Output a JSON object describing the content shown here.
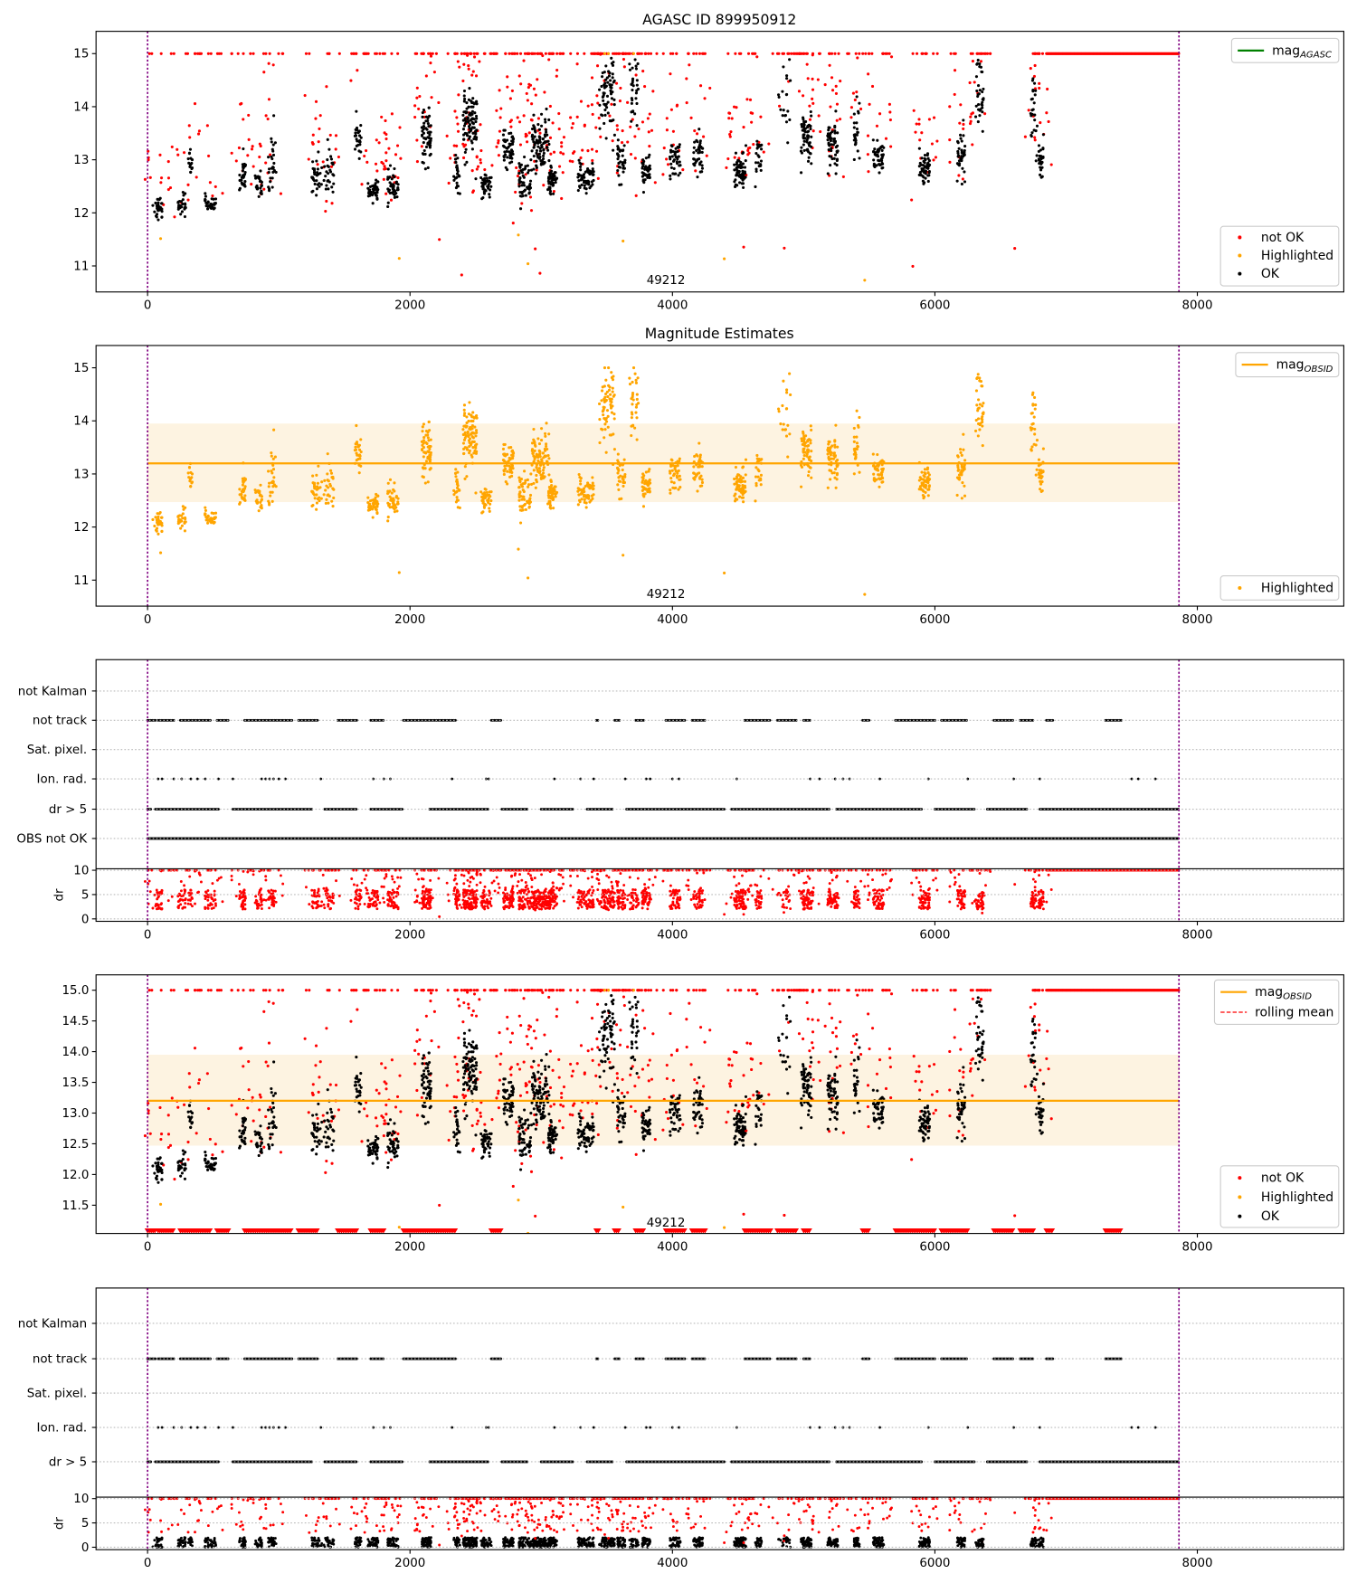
{
  "chart_data": {
    "type": "scatter",
    "title": "AGASC ID 899950912",
    "subtitle": "Magnitude Estimates",
    "obsid_label": "49212",
    "xlim": [
      -390,
      9120
    ],
    "x_ticks": [
      "0",
      "2000",
      "4000",
      "6000",
      "8000"
    ],
    "x_tick_values": [
      0,
      2000,
      4000,
      6000,
      8000
    ],
    "time_range": [
      0,
      7860
    ],
    "mag_mean": 13.2,
    "mag_band": [
      12.47,
      13.95
    ],
    "panels": {
      "mag_agasc": {
        "ylim": [
          10.51,
          15.42
        ],
        "y_ticks": [
          "11",
          "12",
          "13",
          "14",
          "15"
        ],
        "y_tick_values": [
          11,
          12,
          13,
          14,
          15
        ]
      },
      "mag_obsid": {
        "ylim": [
          10.51,
          15.42
        ],
        "y_ticks": [
          "11",
          "12",
          "13",
          "14",
          "15"
        ],
        "y_tick_values": [
          11,
          12,
          13,
          14,
          15
        ]
      },
      "mag_rolling": {
        "ylim": [
          11.04,
          15.25
        ],
        "y_ticks": [
          "11.5",
          "12.0",
          "12.5",
          "13.0",
          "13.5",
          "14.0",
          "14.5",
          "15.0"
        ],
        "y_tick_values": [
          11.5,
          12,
          12.5,
          13,
          13.5,
          14,
          14.5,
          15
        ]
      },
      "dr": {
        "ylabel": "dr",
        "ylim": [
          -0.5,
          10.3
        ],
        "y_ticks": [
          "0",
          "5",
          "10"
        ],
        "y_tick_values": [
          0,
          5,
          10
        ]
      }
    },
    "flag_labels_a": [
      "not Kalman",
      "not track",
      "Sat. pixel.",
      "Ion. rad.",
      "dr > 5",
      "OBS not OK"
    ],
    "flag_labels_b": [
      "not Kalman",
      "not track",
      "Sat. pixel.",
      "Ion. rad.",
      "dr > 5"
    ],
    "legend": {
      "mag_agasc": {
        "base": "mag",
        "sub": "AGASC"
      },
      "mag_obsid": {
        "base": "mag",
        "sub": "OBSID"
      },
      "rolling_mean": "rolling mean",
      "not_ok": "not OK",
      "highlighted": "Highlighted",
      "ok": "OK"
    },
    "colors": {
      "ok": "#000000",
      "not_ok": "#ff0000",
      "highlighted": "#ffa500",
      "agasc_line": "#008000",
      "obsid_line": "#ffa500",
      "band": "#fdf3e1",
      "time_bounds": "#800080"
    },
    "clusters": [
      [
        40,
        110,
        12.1,
        0.12,
        30
      ],
      [
        230,
        290,
        12.1,
        0.12,
        25
      ],
      [
        310,
        350,
        13.0,
        0.15,
        15
      ],
      [
        430,
        520,
        12.2,
        0.12,
        30
      ],
      [
        700,
        750,
        12.7,
        0.2,
        30
      ],
      [
        820,
        880,
        12.5,
        0.15,
        25
      ],
      [
        920,
        980,
        12.9,
        0.35,
        30
      ],
      [
        1250,
        1420,
        12.7,
        0.2,
        60
      ],
      [
        1580,
        1630,
        13.4,
        0.2,
        25
      ],
      [
        1680,
        1760,
        12.4,
        0.12,
        40
      ],
      [
        1830,
        1910,
        12.5,
        0.15,
        40
      ],
      [
        2090,
        2160,
        13.4,
        0.25,
        60
      ],
      [
        2320,
        2380,
        12.7,
        0.2,
        25
      ],
      [
        2400,
        2510,
        13.7,
        0.35,
        90
      ],
      [
        2540,
        2620,
        12.5,
        0.12,
        40
      ],
      [
        2710,
        2790,
        13.2,
        0.2,
        50
      ],
      [
        2830,
        2920,
        12.6,
        0.2,
        50
      ],
      [
        2920,
        3060,
        13.3,
        0.3,
        90
      ],
      [
        3050,
        3120,
        12.6,
        0.15,
        50
      ],
      [
        3280,
        3400,
        12.7,
        0.15,
        60
      ],
      [
        3440,
        3560,
        14.2,
        0.4,
        70
      ],
      [
        3580,
        3640,
        13.0,
        0.2,
        35
      ],
      [
        3670,
        3740,
        14.3,
        0.35,
        30
      ],
      [
        3770,
        3830,
        12.8,
        0.15,
        40
      ],
      [
        3980,
        4060,
        13.0,
        0.2,
        40
      ],
      [
        4160,
        4230,
        13.1,
        0.2,
        40
      ],
      [
        4470,
        4560,
        12.8,
        0.15,
        60
      ],
      [
        4630,
        4680,
        13.1,
        0.2,
        25
      ],
      [
        4800,
        4900,
        14.1,
        0.5,
        20
      ],
      [
        4980,
        5060,
        13.4,
        0.25,
        60
      ],
      [
        5180,
        5260,
        13.3,
        0.25,
        50
      ],
      [
        5380,
        5430,
        13.5,
        0.25,
        25
      ],
      [
        5530,
        5610,
        13.1,
        0.15,
        45
      ],
      [
        5880,
        5960,
        12.8,
        0.15,
        50
      ],
      [
        6170,
        6230,
        13.1,
        0.25,
        40
      ],
      [
        6310,
        6370,
        14.2,
        0.4,
        35
      ],
      [
        6730,
        6780,
        13.9,
        0.4,
        25
      ],
      [
        6790,
        6830,
        13.0,
        0.2,
        25
      ]
    ],
    "saturated_range": [
      6850,
      7860
    ],
    "flags": {
      "not_track": [
        [
          0,
          60
        ],
        [
          80,
          200
        ],
        [
          250,
          480
        ],
        [
          530,
          620
        ],
        [
          740,
          1100
        ],
        [
          1150,
          1300
        ],
        [
          1450,
          1600
        ],
        [
          1700,
          1800
        ],
        [
          1950,
          2350
        ],
        [
          2620,
          2700
        ],
        [
          3420,
          3440
        ],
        [
          3560,
          3600
        ],
        [
          3720,
          3780
        ],
        [
          3950,
          4100
        ],
        [
          4150,
          4250
        ],
        [
          4550,
          4750
        ],
        [
          4800,
          4950
        ],
        [
          5000,
          5050
        ],
        [
          5450,
          5500
        ],
        [
          5700,
          6000
        ],
        [
          6050,
          6250
        ],
        [
          6450,
          6600
        ],
        [
          6650,
          6750
        ],
        [
          6850,
          6900
        ],
        [
          7300,
          7420
        ]
      ],
      "ion_rad": [
        80,
        110,
        200,
        260,
        330,
        380,
        440,
        540,
        650,
        870,
        900,
        930,
        960,
        1000,
        1050,
        1320,
        1720,
        1800,
        1850,
        2320,
        2580,
        2600,
        3100,
        3300,
        3400,
        3640,
        3800,
        3830,
        4000,
        4050,
        4490,
        5050,
        5120,
        5240,
        5300,
        5350,
        5580,
        5950,
        6250,
        6600,
        6800,
        7500,
        7550,
        7680
      ],
      "dr_gt_5": [
        [
          0,
          30
        ],
        [
          60,
          550
        ],
        [
          650,
          1250
        ],
        [
          1350,
          1600
        ],
        [
          1700,
          1950
        ],
        [
          2150,
          2600
        ],
        [
          2700,
          2900
        ],
        [
          3000,
          3250
        ],
        [
          3350,
          3550
        ],
        [
          3650,
          4400
        ],
        [
          4450,
          5200
        ],
        [
          5250,
          5900
        ],
        [
          6000,
          6300
        ],
        [
          6400,
          6700
        ],
        [
          6800,
          7860
        ]
      ],
      "obs_not_ok": [
        [
          0,
          7860
        ]
      ]
    }
  }
}
